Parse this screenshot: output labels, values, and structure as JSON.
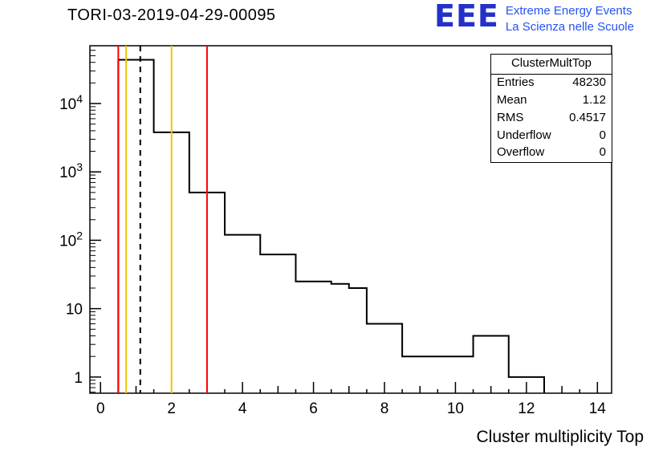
{
  "logo": {
    "letters": "EEE",
    "line1": "Extreme Energy Events",
    "line2": "La Scienza nelle Scuole",
    "letters_color": "#2431c8",
    "text_color": "#2553f0"
  },
  "stats": {
    "title": "ClusterMultTop",
    "rows": [
      {
        "label": "Entries",
        "value": "48230"
      },
      {
        "label": "Mean",
        "value": "1.12"
      },
      {
        "label": "RMS",
        "value": "0.4517"
      },
      {
        "label": "Underflow",
        "value": "0"
      },
      {
        "label": "Overflow",
        "value": "0"
      }
    ]
  },
  "chart_data": {
    "type": "bar",
    "title": "TORI-03-2019-04-29-00095",
    "xlabel": "Cluster multiplicity Top",
    "ylabel": "",
    "x_scale": "linear",
    "y_scale": "log",
    "xlim": [
      -0.3,
      14.4
    ],
    "ylim": [
      0.58,
      70000
    ],
    "grid": false,
    "hist_color": "#000000",
    "x_major_ticks": [
      0,
      2,
      4,
      6,
      8,
      10,
      12,
      14
    ],
    "y_major_ticks": [
      {
        "label": "1",
        "value": 1
      },
      {
        "label": "10",
        "value": 10
      },
      {
        "base": "10",
        "exp": "2",
        "value": 100
      },
      {
        "base": "10",
        "exp": "3",
        "value": 1000
      },
      {
        "base": "10",
        "exp": "4",
        "value": 10000
      }
    ],
    "bins": [
      {
        "x1": 0.5,
        "x2": 1.5,
        "count": 43667
      },
      {
        "x1": 1.5,
        "x2": 2.5,
        "count": 3800
      },
      {
        "x1": 2.5,
        "x2": 3.5,
        "count": 500
      },
      {
        "x1": 3.5,
        "x2": 4.5,
        "count": 120
      },
      {
        "x1": 4.5,
        "x2": 5.5,
        "count": 62
      },
      {
        "x1": 5.5,
        "x2": 6.5,
        "count": 25
      },
      {
        "x1": 6.5,
        "x2": 7.0,
        "count": 23
      },
      {
        "x1": 7.0,
        "x2": 7.5,
        "count": 20
      },
      {
        "x1": 7.5,
        "x2": 8.5,
        "count": 6
      },
      {
        "x1": 8.5,
        "x2": 10.5,
        "count": 2
      },
      {
        "x1": 10.5,
        "x2": 11.5,
        "count": 4
      },
      {
        "x1": 11.5,
        "x2": 12.5,
        "count": 1
      }
    ],
    "marker_lines": [
      {
        "x": 0.5,
        "color": "#ff0000",
        "dash": false
      },
      {
        "x": 0.72,
        "color": "#f5c400",
        "dash": false
      },
      {
        "x": 1.12,
        "color": "#000000",
        "dash": true
      },
      {
        "x": 2.0,
        "color": "#f5c400",
        "dash": false
      },
      {
        "x": 3.0,
        "color": "#ff0000",
        "dash": false
      }
    ]
  }
}
